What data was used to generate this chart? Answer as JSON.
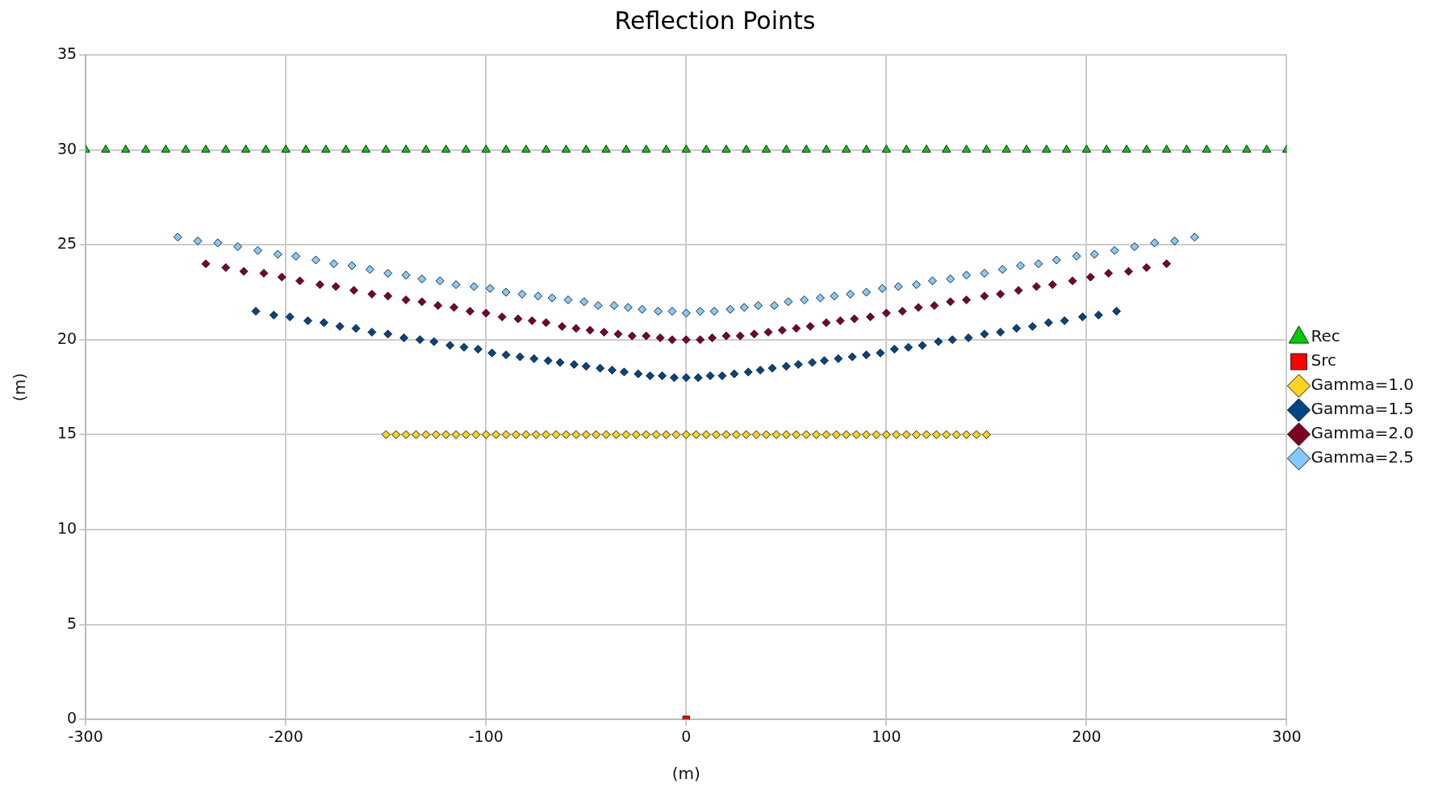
{
  "chart_data": {
    "type": "scatter",
    "title": "Reflection Points",
    "xlabel": "(m)",
    "ylabel": "(m)",
    "xlim": [
      -300,
      300
    ],
    "xticks": [
      -300,
      -200,
      -100,
      0,
      100,
      200,
      300
    ],
    "ylim": [
      0,
      35
    ],
    "yticks": [
      0,
      5,
      10,
      15,
      20,
      25,
      30,
      35
    ],
    "grid": true,
    "legend": "right",
    "series": [
      {
        "name": "Rec",
        "color": "#00cc00",
        "marker": "triangle",
        "x": [
          -300,
          -290,
          -280,
          -270,
          -260,
          -250,
          -240,
          -230,
          -220,
          -210,
          -200,
          -190,
          -180,
          -170,
          -160,
          -150,
          -140,
          -130,
          -120,
          -110,
          -100,
          -90,
          -80,
          -70,
          -60,
          -50,
          -40,
          -30,
          -20,
          -10,
          0,
          10,
          20,
          30,
          40,
          50,
          60,
          70,
          80,
          90,
          100,
          110,
          120,
          130,
          140,
          150,
          160,
          170,
          180,
          190,
          200,
          210,
          220,
          230,
          240,
          250,
          260,
          270,
          280,
          290,
          300
        ],
        "values": [
          30,
          30,
          30,
          30,
          30,
          30,
          30,
          30,
          30,
          30,
          30,
          30,
          30,
          30,
          30,
          30,
          30,
          30,
          30,
          30,
          30,
          30,
          30,
          30,
          30,
          30,
          30,
          30,
          30,
          30,
          30,
          30,
          30,
          30,
          30,
          30,
          30,
          30,
          30,
          30,
          30,
          30,
          30,
          30,
          30,
          30,
          30,
          30,
          30,
          30,
          30,
          30,
          30,
          30,
          30,
          30,
          30,
          30,
          30,
          30,
          30
        ]
      },
      {
        "name": "Src",
        "color": "#ff0000",
        "marker": "square",
        "x": [
          0
        ],
        "values": [
          0
        ]
      },
      {
        "name": "Gamma=1.0",
        "color": "#ffd320",
        "marker": "diamond",
        "x": [
          -150,
          -145,
          -140,
          -135,
          -130,
          -125,
          -120,
          -115,
          -110,
          -105,
          -100,
          -95,
          -90,
          -85,
          -80,
          -75,
          -70,
          -65,
          -60,
          -55,
          -50,
          -45,
          -40,
          -35,
          -30,
          -25,
          -20,
          -15,
          -10,
          -5,
          0,
          5,
          10,
          15,
          20,
          25,
          30,
          35,
          40,
          45,
          50,
          55,
          60,
          65,
          70,
          75,
          80,
          85,
          90,
          95,
          100,
          105,
          110,
          115,
          120,
          125,
          130,
          135,
          140,
          145,
          150
        ],
        "values": [
          15,
          15,
          15,
          15,
          15,
          15,
          15,
          15,
          15,
          15,
          15,
          15,
          15,
          15,
          15,
          15,
          15,
          15,
          15,
          15,
          15,
          15,
          15,
          15,
          15,
          15,
          15,
          15,
          15,
          15,
          15,
          15,
          15,
          15,
          15,
          15,
          15,
          15,
          15,
          15,
          15,
          15,
          15,
          15,
          15,
          15,
          15,
          15,
          15,
          15,
          15,
          15,
          15,
          15,
          15,
          15,
          15,
          15,
          15,
          15,
          15
        ]
      },
      {
        "name": "Gamma=1.5",
        "color": "#004586",
        "marker": "diamond",
        "x": [
          -215,
          -206,
          -198,
          -189,
          -181,
          -173,
          -165,
          -157,
          -149,
          -141,
          -133,
          -126,
          -118,
          -111,
          -104,
          -97,
          -90,
          -83,
          -76,
          -69,
          -63,
          -56,
          -50,
          -43,
          -37,
          -31,
          -24,
          -18,
          -12,
          -6,
          0,
          6,
          12,
          18,
          24,
          31,
          37,
          43,
          50,
          56,
          63,
          69,
          76,
          83,
          90,
          97,
          104,
          111,
          118,
          126,
          133,
          141,
          149,
          157,
          165,
          173,
          181,
          189,
          198,
          206,
          215
        ],
        "values": [
          21.5,
          21.3,
          21.2,
          21.0,
          20.9,
          20.7,
          20.6,
          20.4,
          20.3,
          20.1,
          20.0,
          19.9,
          19.7,
          19.6,
          19.5,
          19.3,
          19.2,
          19.1,
          19.0,
          18.9,
          18.8,
          18.7,
          18.6,
          18.5,
          18.4,
          18.3,
          18.2,
          18.1,
          18.1,
          18.0,
          18.0,
          18.0,
          18.1,
          18.1,
          18.2,
          18.3,
          18.4,
          18.5,
          18.6,
          18.7,
          18.8,
          18.9,
          19.0,
          19.1,
          19.2,
          19.3,
          19.5,
          19.6,
          19.7,
          19.9,
          20.0,
          20.1,
          20.3,
          20.4,
          20.6,
          20.7,
          20.9,
          21.0,
          21.2,
          21.3,
          21.5
        ]
      },
      {
        "name": "Gamma=2.0",
        "color": "#7e0021",
        "marker": "diamond",
        "x": [
          -240,
          -230,
          -221,
          -211,
          -202,
          -193,
          -183,
          -175,
          -166,
          -157,
          -149,
          -140,
          -132,
          -124,
          -116,
          -108,
          -100,
          -92,
          -84,
          -77,
          -70,
          -62,
          -55,
          -48,
          -41,
          -34,
          -27,
          -20,
          -13,
          -7,
          0,
          7,
          13,
          20,
          27,
          34,
          41,
          48,
          55,
          62,
          70,
          77,
          84,
          92,
          100,
          108,
          116,
          124,
          132,
          140,
          149,
          157,
          166,
          175,
          183,
          193,
          202,
          211,
          221,
          230,
          240
        ],
        "values": [
          24.0,
          23.8,
          23.6,
          23.5,
          23.3,
          23.1,
          22.9,
          22.8,
          22.6,
          22.4,
          22.3,
          22.1,
          22.0,
          21.8,
          21.7,
          21.5,
          21.4,
          21.2,
          21.1,
          21.0,
          20.9,
          20.7,
          20.6,
          20.5,
          20.4,
          20.3,
          20.2,
          20.2,
          20.1,
          20.0,
          20.0,
          20.0,
          20.1,
          20.2,
          20.2,
          20.3,
          20.4,
          20.5,
          20.6,
          20.7,
          20.9,
          21.0,
          21.1,
          21.2,
          21.4,
          21.5,
          21.7,
          21.8,
          22.0,
          22.1,
          22.3,
          22.4,
          22.6,
          22.8,
          22.9,
          23.1,
          23.3,
          23.5,
          23.6,
          23.8,
          24.0
        ]
      },
      {
        "name": "Gamma=2.5",
        "color": "#83caff",
        "marker": "diamond",
        "x": [
          -254,
          -244,
          -234,
          -224,
          -214,
          -204,
          -195,
          -185,
          -176,
          -167,
          -158,
          -149,
          -140,
          -132,
          -123,
          -115,
          -106,
          -98,
          -90,
          -82,
          -74,
          -67,
          -59,
          -51,
          -44,
          -36,
          -29,
          -22,
          -14,
          -7,
          0,
          7,
          14,
          22,
          29,
          36,
          44,
          51,
          59,
          67,
          74,
          82,
          90,
          98,
          106,
          115,
          123,
          132,
          140,
          149,
          158,
          167,
          176,
          185,
          195,
          204,
          214,
          224,
          234,
          244,
          254
        ],
        "values": [
          25.4,
          25.2,
          25.1,
          24.9,
          24.7,
          24.5,
          24.4,
          24.2,
          24.0,
          23.9,
          23.7,
          23.5,
          23.4,
          23.2,
          23.1,
          22.9,
          22.8,
          22.7,
          22.5,
          22.4,
          22.3,
          22.2,
          22.1,
          22.0,
          21.8,
          21.8,
          21.7,
          21.6,
          21.5,
          21.5,
          21.4,
          21.5,
          21.5,
          21.6,
          21.7,
          21.8,
          21.8,
          22.0,
          22.1,
          22.2,
          22.3,
          22.4,
          22.5,
          22.7,
          22.8,
          22.9,
          23.1,
          23.2,
          23.4,
          23.5,
          23.7,
          23.9,
          24.0,
          24.2,
          24.4,
          24.5,
          24.7,
          24.9,
          25.1,
          25.2,
          25.4
        ]
      }
    ]
  }
}
